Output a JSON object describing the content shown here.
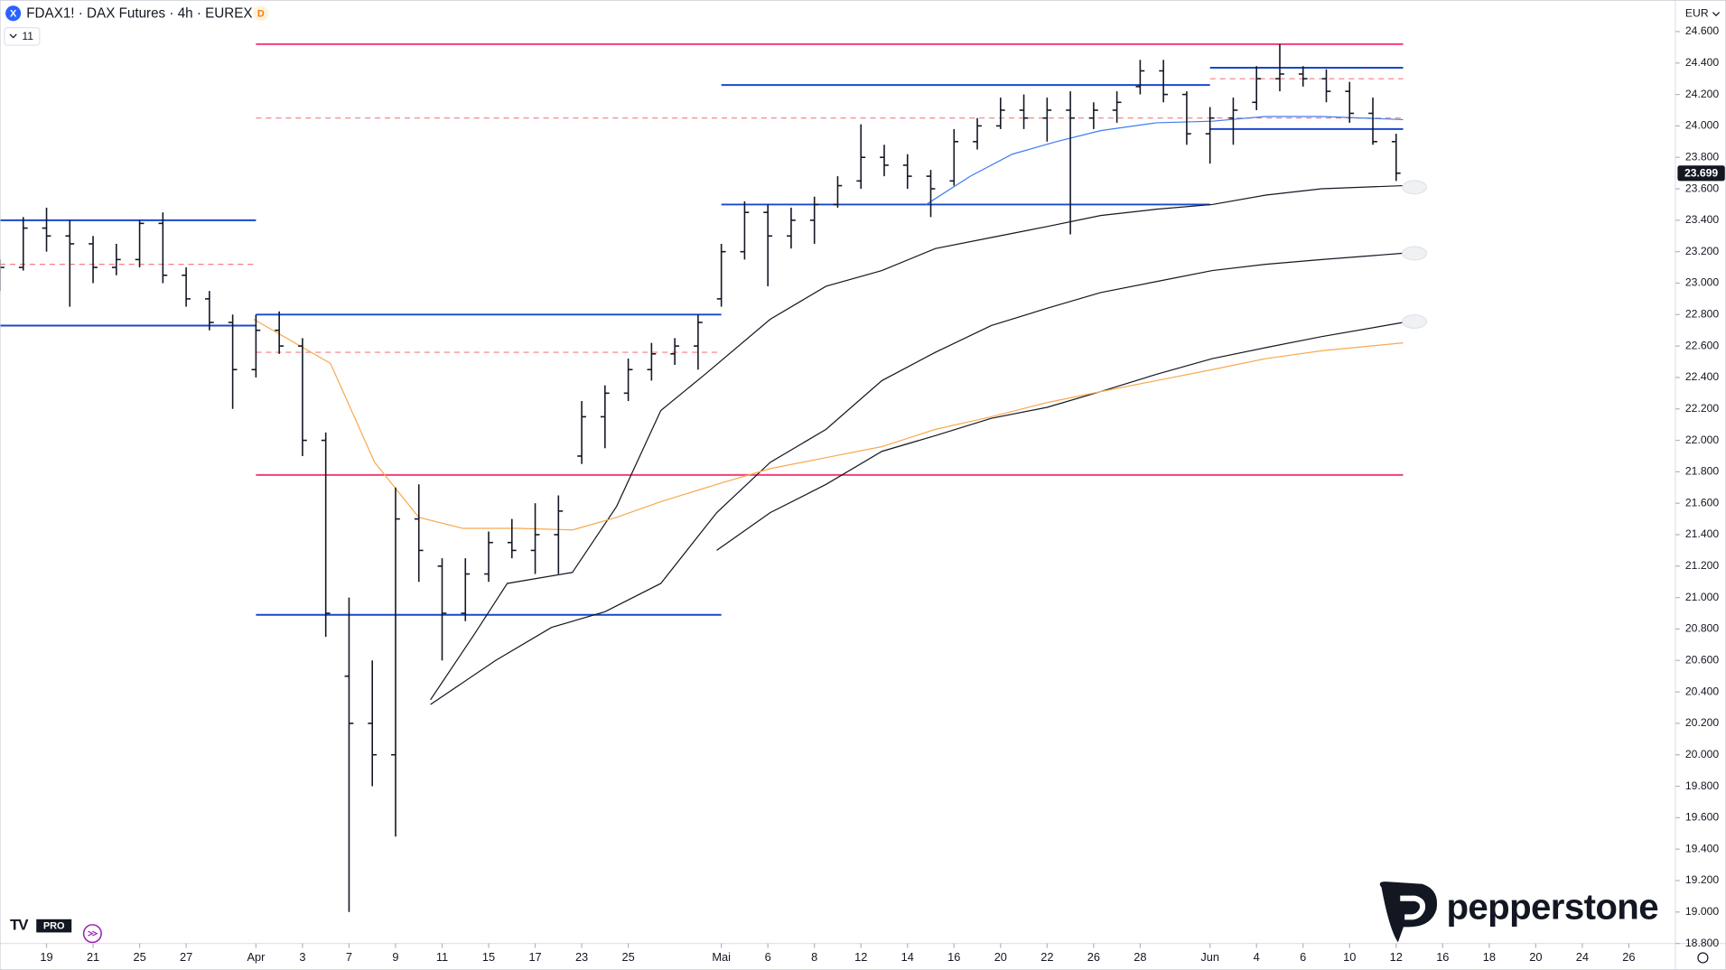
{
  "chart_data": {
    "type": "ohlc",
    "symbol_icon": "X",
    "title": "FDAX1! · DAX Futures · 4h · EUREX",
    "badge": "D",
    "indicator_count": "11",
    "currency": "EUR",
    "watermark": "pepperstone",
    "tv_logo": "TV",
    "pro_badge": "PRO",
    "last_value_label": "23.699",
    "grid": false,
    "bar_color": "#131722",
    "xlim": [
      -2,
      70
    ],
    "ylim": [
      18800,
      24800
    ],
    "yticks": [
      {
        "value": 18800,
        "label": "18.800"
      },
      {
        "value": 19000,
        "label": "19.000"
      },
      {
        "value": 19200,
        "label": "19.200"
      },
      {
        "value": 19400,
        "label": "19.400"
      },
      {
        "value": 19600,
        "label": "19.600"
      },
      {
        "value": 19800,
        "label": "19.800"
      },
      {
        "value": 20000,
        "label": "20.000"
      },
      {
        "value": 20200,
        "label": "20.200"
      },
      {
        "value": 20400,
        "label": "20.400"
      },
      {
        "value": 20600,
        "label": "20.600"
      },
      {
        "value": 20800,
        "label": "20.800"
      },
      {
        "value": 21000,
        "label": "21.000"
      },
      {
        "value": 21200,
        "label": "21.200"
      },
      {
        "value": 21400,
        "label": "21.400"
      },
      {
        "value": 21600,
        "label": "21.600"
      },
      {
        "value": 21800,
        "label": "21.800"
      },
      {
        "value": 22000,
        "label": "22.000"
      },
      {
        "value": 22200,
        "label": "22.200"
      },
      {
        "value": 22400,
        "label": "22.400"
      },
      {
        "value": 22600,
        "label": "22.600"
      },
      {
        "value": 22800,
        "label": "22.800"
      },
      {
        "value": 23000,
        "label": "23.000"
      },
      {
        "value": 23200,
        "label": "23.200"
      },
      {
        "value": 23400,
        "label": "23.400"
      },
      {
        "value": 23600,
        "label": "23.600"
      },
      {
        "value": 23800,
        "label": "23.800"
      },
      {
        "value": 24000,
        "label": "24.000"
      },
      {
        "value": 24200,
        "label": "24.200"
      },
      {
        "value": 24400,
        "label": "24.400"
      },
      {
        "value": 24600,
        "label": "24.600"
      }
    ],
    "xticks": [
      {
        "value": 0,
        "label": "19"
      },
      {
        "value": 2,
        "label": "21"
      },
      {
        "value": 4,
        "label": "25"
      },
      {
        "value": 6,
        "label": "27"
      },
      {
        "value": 9,
        "label": "Apr"
      },
      {
        "value": 11,
        "label": "3"
      },
      {
        "value": 13,
        "label": "7"
      },
      {
        "value": 15,
        "label": "9"
      },
      {
        "value": 17,
        "label": "11"
      },
      {
        "value": 19,
        "label": "15"
      },
      {
        "value": 21,
        "label": "17"
      },
      {
        "value": 23,
        "label": "23"
      },
      {
        "value": 25,
        "label": "25"
      },
      {
        "value": 29,
        "label": "Mai"
      },
      {
        "value": 31,
        "label": "6"
      },
      {
        "value": 33,
        "label": "8"
      },
      {
        "value": 35,
        "label": "12"
      },
      {
        "value": 37,
        "label": "14"
      },
      {
        "value": 39,
        "label": "16"
      },
      {
        "value": 41,
        "label": "20"
      },
      {
        "value": 43,
        "label": "22"
      },
      {
        "value": 45,
        "label": "26"
      },
      {
        "value": 47,
        "label": "28"
      },
      {
        "value": 50,
        "label": "Jun"
      },
      {
        "value": 52,
        "label": "4"
      },
      {
        "value": 54,
        "label": "6"
      },
      {
        "value": 56,
        "label": "10"
      },
      {
        "value": 58,
        "label": "12"
      },
      {
        "value": 60,
        "label": "16"
      },
      {
        "value": 62,
        "label": "18"
      },
      {
        "value": 64,
        "label": "20"
      },
      {
        "value": 66,
        "label": "24"
      },
      {
        "value": 68,
        "label": "26"
      }
    ],
    "x": [
      -2,
      -1,
      0,
      1,
      2,
      3,
      4,
      5,
      6,
      7,
      8,
      9,
      10,
      11,
      12,
      13,
      14,
      15,
      16,
      17,
      18,
      19,
      20,
      21,
      22,
      23,
      24,
      25,
      26,
      27,
      28,
      29,
      30,
      31,
      32,
      33,
      34,
      35,
      36,
      37,
      38,
      39,
      40,
      41,
      42,
      43,
      44,
      45,
      46,
      47,
      48,
      49,
      50,
      51,
      52,
      53,
      54,
      55,
      56,
      57,
      58
    ],
    "open": [
      23000,
      23100,
      23350,
      23300,
      23250,
      23100,
      23150,
      23380,
      23050,
      22900,
      22750,
      22450,
      22700,
      22600,
      22000,
      20500,
      20200,
      20000,
      21500,
      21200,
      20900,
      21150,
      21350,
      21300,
      21400,
      21900,
      22150,
      22300,
      22450,
      22550,
      22600,
      22900,
      23200,
      23450,
      23300,
      23400,
      23500,
      23650,
      23800,
      23750,
      23680,
      23650,
      23900,
      24000,
      24100,
      24050,
      24100,
      24050,
      24100,
      24250,
      24350,
      24200,
      23950,
      24050,
      24150,
      24300,
      24330,
      24300,
      24220,
      24080,
      23900
    ],
    "high": [
      23150,
      23420,
      23480,
      23400,
      23300,
      23250,
      23400,
      23450,
      23100,
      22950,
      22800,
      22800,
      22820,
      22650,
      22050,
      21000,
      20600,
      21700,
      21720,
      21250,
      21250,
      21420,
      21500,
      21600,
      21650,
      22250,
      22350,
      22520,
      22620,
      22650,
      22800,
      23250,
      23520,
      23500,
      23480,
      23550,
      23680,
      24010,
      23880,
      23820,
      23720,
      23980,
      24050,
      24180,
      24200,
      24180,
      24220,
      24150,
      24220,
      24420,
      24420,
      24220,
      24120,
      24180,
      24380,
      24520,
      24380,
      24360,
      24280,
      24180,
      23950
    ],
    "low": [
      22950,
      23080,
      23200,
      22850,
      23000,
      23050,
      23100,
      23000,
      22850,
      22700,
      22200,
      22400,
      22550,
      21900,
      20750,
      19000,
      19800,
      19480,
      21100,
      20600,
      20850,
      21100,
      21250,
      21150,
      21150,
      21850,
      21950,
      22250,
      22380,
      22480,
      22450,
      22850,
      23150,
      22980,
      23220,
      23250,
      23480,
      23600,
      23680,
      23600,
      23420,
      23620,
      23850,
      23980,
      23980,
      23900,
      23310,
      23980,
      24020,
      24200,
      24150,
      23880,
      23760,
      23880,
      24100,
      24220,
      24250,
      24150,
      24020,
      23880,
      23650
    ],
    "close": [
      23100,
      23350,
      23300,
      23250,
      23100,
      23150,
      23380,
      23050,
      22900,
      22750,
      22450,
      22700,
      22600,
      22000,
      20900,
      20200,
      20000,
      21500,
      21300,
      20900,
      21150,
      21350,
      21300,
      21400,
      21550,
      22150,
      22300,
      22450,
      22550,
      22600,
      22750,
      23200,
      23450,
      23300,
      23400,
      23500,
      23620,
      23800,
      23750,
      23680,
      23600,
      23900,
      24000,
      24100,
      24050,
      24100,
      24050,
      24100,
      24150,
      24350,
      24200,
      23950,
      24050,
      24100,
      24300,
      24330,
      24300,
      24220,
      24080,
      23900,
      23699
    ],
    "levels": [
      {
        "value": 24520,
        "color": "#f23f7a",
        "dashed": false,
        "x": [
          9,
          58.3
        ]
      },
      {
        "value": 24050,
        "color": "#f77c80",
        "dashed": true,
        "x": [
          9,
          58.3
        ]
      },
      {
        "value": 21780,
        "color": "#f23f7a",
        "dashed": false,
        "x": [
          9,
          58.3
        ]
      },
      {
        "value": 24260,
        "color": "#1848cc",
        "dashed": false,
        "x": [
          29,
          50
        ]
      },
      {
        "value": 23500,
        "color": "#1848cc",
        "dashed": false,
        "x": [
          29,
          50
        ]
      },
      {
        "value": 24370,
        "color": "#1848cc",
        "dashed": false,
        "x": [
          50,
          58.3
        ]
      },
      {
        "value": 24300,
        "color": "#f77c80",
        "dashed": true,
        "x": [
          50,
          58.3
        ]
      },
      {
        "value": 23980,
        "color": "#1848cc",
        "dashed": false,
        "x": [
          50,
          58.3
        ]
      },
      {
        "value": 23400,
        "color": "#1848cc",
        "dashed": false,
        "x": [
          -2,
          9
        ]
      },
      {
        "value": 23120,
        "color": "#f77c80",
        "dashed": true,
        "x": [
          -2,
          9
        ]
      },
      {
        "value": 22730,
        "color": "#1848cc",
        "dashed": false,
        "x": [
          -2,
          9
        ]
      },
      {
        "value": 22800,
        "color": "#1848cc",
        "dashed": false,
        "x": [
          9,
          29
        ]
      },
      {
        "value": 22560,
        "color": "#f77c80",
        "dashed": true,
        "x": [
          9,
          29
        ]
      },
      {
        "value": 20890,
        "color": "#1848cc",
        "dashed": false,
        "x": [
          9,
          29
        ]
      }
    ],
    "indicators": [
      {
        "color": "#131722",
        "x": [
          16.5,
          18.4,
          19.8,
          22.6,
          24.5,
          26.4,
          28.3,
          31.1,
          33.5,
          35.9,
          38.2,
          40.6,
          43.0,
          45.3,
          47.7,
          50.1,
          52.4,
          54.8,
          58.3
        ],
        "values": [
          20350,
          20770,
          21090,
          21160,
          21580,
          22190,
          22420,
          22770,
          22980,
          23080,
          23220,
          23290,
          23360,
          23430,
          23470,
          23500,
          23560,
          23600,
          23620
        ]
      },
      {
        "color": "#131722",
        "x": [
          16.5,
          19.3,
          21.7,
          24.0,
          26.4,
          28.8,
          31.1,
          33.5,
          35.9,
          38.2,
          40.6,
          43.0,
          45.3,
          47.7,
          50.1,
          52.4,
          54.8,
          58.3
        ],
        "values": [
          20320,
          20600,
          20810,
          20910,
          21090,
          21540,
          21860,
          22070,
          22380,
          22560,
          22730,
          22840,
          22940,
          23010,
          23080,
          23120,
          23150,
          23190
        ]
      },
      {
        "color": "#131722",
        "x": [
          28.8,
          31.1,
          33.5,
          35.9,
          38.2,
          40.6,
          43.0,
          45.3,
          47.7,
          50.1,
          52.4,
          54.8,
          58.3
        ],
        "values": [
          21300,
          21540,
          21720,
          21930,
          22030,
          22140,
          22210,
          22310,
          22420,
          22520,
          22590,
          22660,
          22750
        ]
      },
      {
        "color": "#f7a94f",
        "x": [
          8.9,
          12.2,
          14.1,
          16.0,
          17.9,
          20.3,
          22.6,
          24.5,
          26.4,
          28.8,
          31.1,
          33.5,
          35.9,
          38.2,
          40.6,
          43.0,
          45.3,
          47.7,
          50.1,
          52.4,
          54.8,
          58.3
        ],
        "values": [
          22770,
          22490,
          21860,
          21510,
          21440,
          21440,
          21430,
          21510,
          21610,
          21720,
          21820,
          21890,
          21960,
          22070,
          22150,
          22240,
          22310,
          22380,
          22450,
          22520,
          22570,
          22620
        ]
      },
      {
        "color": "#3d7cf0",
        "x": [
          37.8,
          39.7,
          41.5,
          43.4,
          45.3,
          47.7,
          50.1,
          52.4,
          54.8,
          58.3
        ],
        "values": [
          23500,
          23680,
          23820,
          23900,
          23970,
          24020,
          24030,
          24060,
          24060,
          24040
        ]
      }
    ]
  }
}
